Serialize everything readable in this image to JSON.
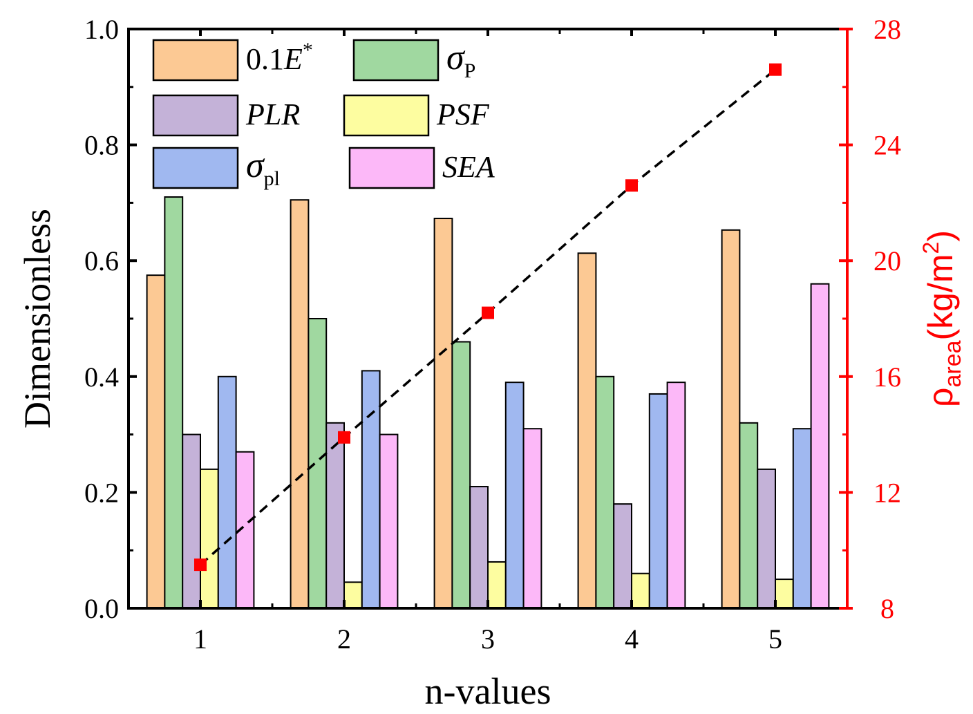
{
  "chart_data": {
    "type": "bar",
    "x_label": "n-values",
    "y_label": "Dimensionless",
    "y2_label": {
      "base": "ρ",
      "sub": "area",
      "unit_open": "(kg/m",
      "unit_sup": "2",
      "unit_close": ")"
    },
    "categories": [
      "1",
      "2",
      "3",
      "4",
      "5"
    ],
    "ylim": [
      0,
      1.0
    ],
    "y_ticks": [
      "0.0",
      "0.2",
      "0.4",
      "0.6",
      "0.8",
      "1.0"
    ],
    "y2lim": [
      8,
      28
    ],
    "y2_ticks": [
      "8",
      "12",
      "16",
      "20",
      "24",
      "28"
    ],
    "series": [
      {
        "name": "0.1E*",
        "legend": {
          "pre": "0.1",
          "main": "E",
          "sup": "*"
        },
        "color": "#fcc994",
        "values": [
          0.575,
          0.705,
          0.673,
          0.613,
          0.653
        ]
      },
      {
        "name": "σP",
        "legend": {
          "pre": "",
          "main": "σ",
          "sub": "P"
        },
        "color": "#a0d8a0",
        "values": [
          0.71,
          0.5,
          0.46,
          0.4,
          0.32
        ]
      },
      {
        "name": "PLR",
        "legend": {
          "pre": "",
          "main": "PLR"
        },
        "color": "#c4b2d8",
        "values": [
          0.3,
          0.32,
          0.21,
          0.18,
          0.24
        ]
      },
      {
        "name": "PSF",
        "legend": {
          "pre": "",
          "main": "PSF"
        },
        "color": "#fdfda0",
        "values": [
          0.24,
          0.045,
          0.08,
          0.06,
          0.05
        ]
      },
      {
        "name": "σpl",
        "legend": {
          "pre": "",
          "main": "σ",
          "sub": "pl"
        },
        "color": "#a0b8f0",
        "values": [
          0.4,
          0.41,
          0.39,
          0.37,
          0.31
        ]
      },
      {
        "name": "SEA",
        "legend": {
          "pre": "",
          "main": "SEA"
        },
        "color": "#fcb8f8",
        "values": [
          0.27,
          0.3,
          0.31,
          0.39,
          0.56
        ]
      }
    ],
    "line_series": {
      "name": "ρarea",
      "axis": "right",
      "color": "#ff0000",
      "line_color": "#000000",
      "line_style": "dashed",
      "marker": "square",
      "values": [
        9.5,
        13.9,
        18.2,
        22.6,
        26.6
      ]
    }
  }
}
